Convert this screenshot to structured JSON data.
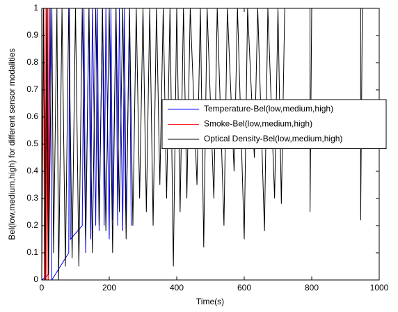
{
  "chart_data": {
    "type": "line",
    "xlabel": "Time(s)",
    "ylabel": "Bel(low,medium,high) for different sensor modalities",
    "xlim": [
      0,
      1000
    ],
    "xticks": [
      0,
      200,
      400,
      600,
      800,
      1000
    ],
    "ylim": [
      0,
      1
    ],
    "yticks": [
      0,
      0.1,
      0.2,
      0.3,
      0.4,
      0.5,
      0.6,
      0.7,
      0.8,
      0.9,
      1
    ],
    "legend": "upper right",
    "series": [
      {
        "name": "Temperature-Bel(low,medium,high)",
        "color": "#0000ff",
        "x": [
          0,
          20,
          25,
          30,
          80,
          82,
          85,
          120,
          125,
          130,
          140,
          145,
          150,
          160,
          165,
          170,
          180,
          185,
          190,
          200,
          205,
          210,
          220,
          225,
          230,
          240,
          245,
          250,
          260,
          265
        ],
        "values": [
          0,
          0.02,
          1,
          0,
          0.1,
          1,
          0.15,
          0.2,
          1,
          0.1,
          1,
          0.15,
          1,
          0.2,
          1,
          0.18,
          1,
          0.2,
          1,
          0.15,
          1,
          0.22,
          1,
          0.2,
          1,
          0.18,
          1,
          0.2,
          1,
          0.2
        ]
      },
      {
        "name": "Smoke-Bel(low,medium,high)",
        "color": "#ff0000",
        "x": [
          0,
          5,
          8,
          10,
          12,
          14,
          16,
          18,
          20,
          22,
          25,
          30,
          380
        ],
        "values": [
          0,
          1,
          0,
          1,
          0,
          1,
          0,
          1,
          0,
          1,
          1,
          1,
          1
        ]
      },
      {
        "name": "Optical Density-Bel(low,medium,high)",
        "color": "#000000",
        "x": [
          0,
          5,
          10,
          15,
          20,
          30,
          35,
          45,
          50,
          60,
          70,
          80,
          90,
          100,
          110,
          120,
          130,
          140,
          150,
          160,
          170,
          180,
          190,
          200,
          210,
          220,
          230,
          240,
          250,
          260,
          270,
          280,
          290,
          300,
          310,
          320,
          330,
          340,
          350,
          360,
          370,
          380,
          390,
          400,
          410,
          420,
          430,
          440,
          460,
          470,
          480,
          490,
          510,
          520,
          540,
          550,
          570,
          580,
          600,
          610,
          630,
          640,
          660,
          670,
          690,
          700,
          710,
          720,
          795,
          795,
          800,
          945,
          945,
          950,
          1000
        ],
        "values": [
          0.05,
          1,
          0,
          1,
          0.02,
          1,
          0.1,
          1,
          0,
          1,
          0.05,
          1,
          0.08,
          1,
          0.05,
          1,
          0.15,
          1,
          0.1,
          1,
          0.2,
          1,
          0.18,
          1,
          0.1,
          1,
          0.25,
          1,
          0.15,
          1,
          0.2,
          1,
          0.3,
          1,
          0.25,
          1,
          0.2,
          1,
          0.35,
          1,
          0.3,
          1,
          0.05,
          1,
          0.25,
          1,
          0.3,
          1,
          0.35,
          1,
          0.12,
          1,
          0.3,
          1,
          0.2,
          1,
          0.4,
          1,
          0.15,
          1,
          0.45,
          1,
          0.18,
          1,
          0.3,
          1,
          0.28,
          1,
          1,
          0.25,
          1,
          1,
          0.22,
          1,
          1
        ]
      }
    ]
  }
}
